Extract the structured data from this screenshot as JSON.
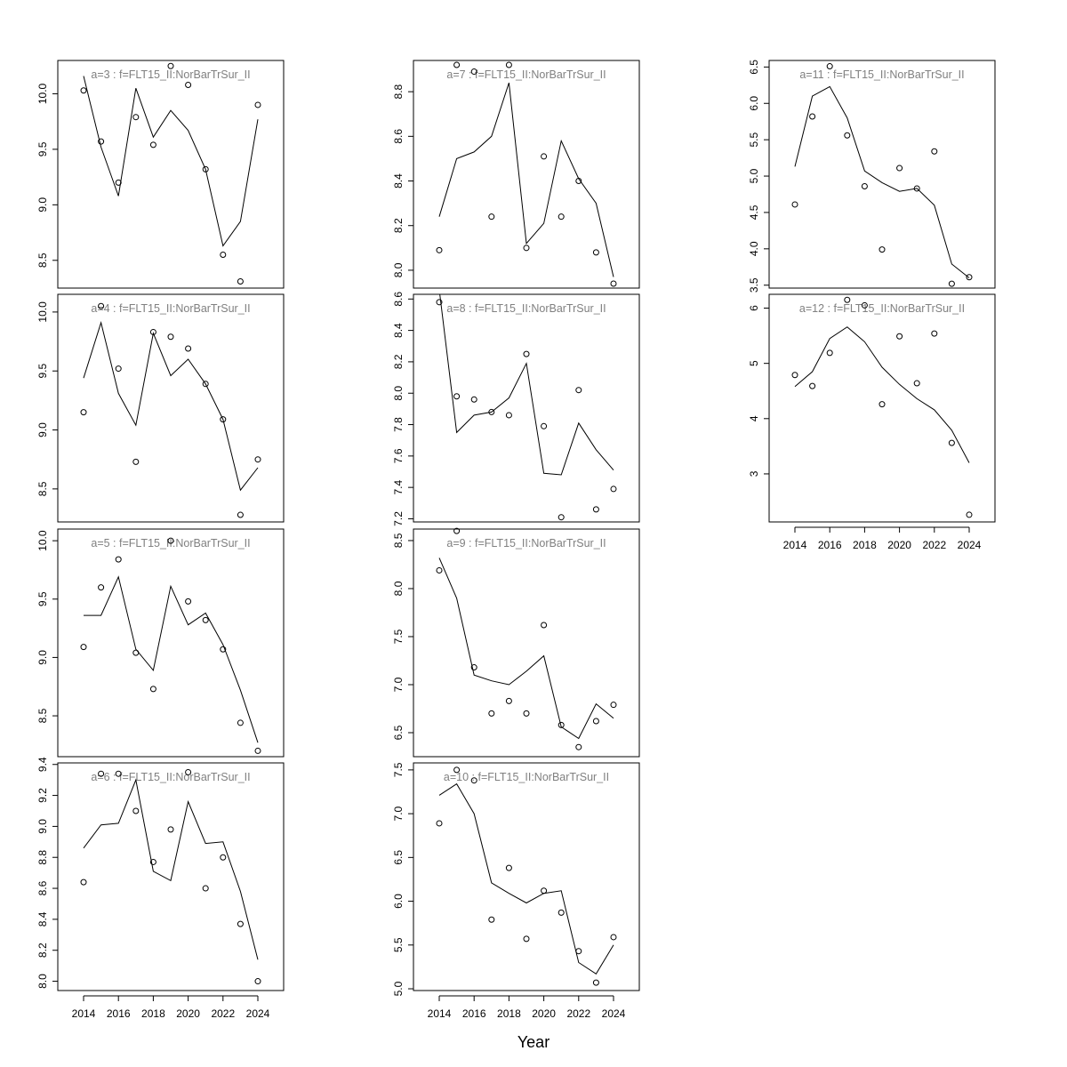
{
  "chart_data": {
    "type": "line",
    "xlabel": "Year",
    "grid": false,
    "line_color": "#000000",
    "point_color": "#000000",
    "title_color": "#808080",
    "panels": [
      {
        "title": "a=3  :  f=FLT15_II:NorBarTrSur_II",
        "x": [
          2014,
          2015,
          2016,
          2017,
          2018,
          2019,
          2020,
          2021,
          2022,
          2023,
          2024
        ],
        "fitted": [
          10.16,
          9.52,
          9.08,
          10.05,
          9.61,
          9.85,
          9.67,
          9.32,
          8.63,
          8.85,
          9.77
        ],
        "observed": [
          10.03,
          9.57,
          9.2,
          9.79,
          9.54,
          10.25,
          10.08,
          9.32,
          8.55,
          8.31,
          9.9
        ],
        "ylim": [
          8.25,
          10.3
        ],
        "yticks": [
          8.5,
          9.0,
          9.5,
          10.0
        ],
        "ytick_labels": [
          "8.5",
          "9.0",
          "9.5",
          "10.0"
        ]
      },
      {
        "title": "a=4  :  f=FLT15_II:NorBarTrSur_II",
        "x": [
          2014,
          2015,
          2016,
          2017,
          2018,
          2019,
          2020,
          2021,
          2022,
          2023,
          2024
        ],
        "fitted": [
          9.44,
          9.91,
          9.31,
          9.04,
          9.82,
          9.46,
          9.6,
          9.39,
          9.09,
          8.49,
          8.68
        ],
        "observed": [
          9.15,
          10.05,
          9.52,
          8.73,
          9.83,
          9.79,
          9.69,
          9.39,
          9.09,
          8.28,
          8.75
        ],
        "ylim": [
          8.22,
          10.15
        ],
        "yticks": [
          8.5,
          9.0,
          9.5,
          10.0
        ],
        "ytick_labels": [
          "8.5",
          "9.0",
          "9.5",
          "10.0"
        ]
      },
      {
        "title": "a=5  :  f=FLT15_II:NorBarTrSur_II",
        "x": [
          2014,
          2015,
          2016,
          2017,
          2018,
          2019,
          2020,
          2021,
          2022,
          2023,
          2024
        ],
        "fitted": [
          9.36,
          9.36,
          9.69,
          9.07,
          8.89,
          9.61,
          9.28,
          9.38,
          9.11,
          8.72,
          8.27
        ],
        "observed": [
          9.09,
          9.6,
          9.84,
          9.04,
          8.73,
          10.0,
          9.48,
          9.32,
          9.07,
          8.44,
          8.2
        ],
        "ylim": [
          8.15,
          10.1
        ],
        "yticks": [
          8.5,
          9.0,
          9.5,
          10.0
        ],
        "ytick_labels": [
          "8.5",
          "9.0",
          "9.5",
          "10.0"
        ]
      },
      {
        "title": "a=6  :  f=FLT15_II:NorBarTrSur_II",
        "x": [
          2014,
          2015,
          2016,
          2017,
          2018,
          2019,
          2020,
          2021,
          2022,
          2023,
          2024
        ],
        "fitted": [
          8.86,
          9.01,
          9.02,
          9.3,
          8.71,
          8.65,
          9.16,
          8.89,
          8.9,
          8.58,
          8.14
        ],
        "observed": [
          8.64,
          9.34,
          9.34,
          9.1,
          8.77,
          8.98,
          9.35,
          8.6,
          8.8,
          8.37,
          8.0
        ],
        "ylim": [
          7.94,
          9.41
        ],
        "yticks": [
          8.0,
          8.2,
          8.4,
          8.6,
          8.8,
          9.0,
          9.2,
          9.4
        ],
        "ytick_labels": [
          "8.0",
          "8.2",
          "8.4",
          "8.6",
          "8.8",
          "9.0",
          "9.2",
          "9.4"
        ]
      },
      {
        "title": "a=7  :  f=FLT15_II:NorBarTrSur_II",
        "x": [
          2014,
          2015,
          2016,
          2017,
          2018,
          2019,
          2020,
          2021,
          2022,
          2023,
          2024
        ],
        "fitted": [
          8.24,
          8.5,
          8.53,
          8.6,
          8.84,
          8.12,
          8.21,
          8.58,
          8.41,
          8.3,
          7.97
        ],
        "observed": [
          8.09,
          8.92,
          8.89,
          8.24,
          8.92,
          8.1,
          8.51,
          8.24,
          8.4,
          8.08,
          7.94
        ],
        "ylim": [
          7.92,
          8.94
        ],
        "yticks": [
          8.0,
          8.2,
          8.4,
          8.6,
          8.8
        ],
        "ytick_labels": [
          "8.0",
          "8.2",
          "8.4",
          "8.6",
          "8.8"
        ]
      },
      {
        "title": "a=8  :  f=FLT15_II:NorBarTrSur_II",
        "x": [
          2014,
          2015,
          2016,
          2017,
          2018,
          2019,
          2020,
          2021,
          2022,
          2023,
          2024
        ],
        "fitted": [
          8.66,
          7.75,
          7.86,
          7.88,
          7.97,
          8.19,
          7.49,
          7.48,
          7.81,
          7.64,
          7.51
        ],
        "observed": [
          8.58,
          7.98,
          7.96,
          7.88,
          7.86,
          8.25,
          7.79,
          7.21,
          8.02,
          7.26,
          7.39
        ],
        "ylim": [
          7.18,
          8.63
        ],
        "yticks": [
          7.2,
          7.4,
          7.6,
          7.8,
          8.0,
          8.2,
          8.4,
          8.6
        ],
        "ytick_labels": [
          "7.2",
          "7.4",
          "7.6",
          "7.8",
          "8.0",
          "8.2",
          "8.4",
          "8.6"
        ]
      },
      {
        "title": "a=9  :  f=FLT15_II:NorBarTrSur_II",
        "x": [
          2014,
          2015,
          2016,
          2017,
          2018,
          2019,
          2020,
          2021,
          2022,
          2023,
          2024
        ],
        "fitted": [
          8.32,
          7.9,
          7.1,
          7.04,
          7.0,
          7.14,
          7.3,
          6.56,
          6.44,
          6.8,
          6.65
        ],
        "observed": [
          8.19,
          8.6,
          7.18,
          6.7,
          6.83,
          6.7,
          7.62,
          6.58,
          6.35,
          6.62,
          6.79
        ],
        "ylim": [
          6.25,
          8.62
        ],
        "yticks": [
          6.5,
          7.0,
          7.5,
          8.0,
          8.5
        ],
        "ytick_labels": [
          "6.5",
          "7.0",
          "7.5",
          "8.0",
          "8.5"
        ]
      },
      {
        "title": "a=10  :  f=FLT15_II:NorBarTrSur_II",
        "x": [
          2014,
          2015,
          2016,
          2017,
          2018,
          2019,
          2020,
          2021,
          2022,
          2023,
          2024
        ],
        "fitted": [
          7.21,
          7.34,
          7.0,
          6.21,
          6.09,
          5.98,
          6.09,
          6.12,
          5.3,
          5.17,
          5.5
        ],
        "observed": [
          6.89,
          7.5,
          7.38,
          5.79,
          6.38,
          5.57,
          6.12,
          5.87,
          5.43,
          5.07,
          5.59
        ],
        "ylim": [
          4.98,
          7.58
        ],
        "yticks": [
          5.0,
          5.5,
          6.0,
          6.5,
          7.0,
          7.5
        ],
        "ytick_labels": [
          "5.0",
          "5.5",
          "6.0",
          "6.5",
          "7.0",
          "7.5"
        ]
      },
      {
        "title": "a=11  :  f=FLT15_II:NorBarTrSur_II",
        "x": [
          2014,
          2015,
          2016,
          2017,
          2018,
          2019,
          2020,
          2021,
          2022,
          2023,
          2024
        ],
        "fitted": [
          5.13,
          6.1,
          6.23,
          5.8,
          5.07,
          4.91,
          4.79,
          4.83,
          4.6,
          3.79,
          3.6
        ],
        "observed": [
          4.61,
          5.82,
          6.51,
          5.56,
          4.86,
          3.99,
          5.11,
          4.83,
          5.34,
          3.52,
          3.61
        ],
        "ylim": [
          3.46,
          6.59
        ],
        "yticks": [
          3.5,
          4.0,
          4.5,
          5.0,
          5.5,
          6.0,
          6.5
        ],
        "ytick_labels": [
          "3.5",
          "4.0",
          "4.5",
          "5.0",
          "5.5",
          "6.0",
          "6.5"
        ]
      },
      {
        "title": "a=12  :  f=FLT15_II:NorBarTrSur_II",
        "x": [
          2014,
          2015,
          2016,
          2017,
          2018,
          2019,
          2020,
          2021,
          2022,
          2023,
          2024
        ],
        "fitted": [
          4.58,
          4.85,
          5.45,
          5.66,
          5.39,
          4.93,
          4.62,
          4.36,
          4.16,
          3.79,
          3.2
        ],
        "observed": [
          4.79,
          4.59,
          5.19,
          6.15,
          6.05,
          4.26,
          5.49,
          4.64,
          5.54,
          3.56,
          2.26
        ],
        "ylim": [
          2.13,
          6.25
        ],
        "yticks": [
          3,
          4,
          5,
          6
        ],
        "ytick_labels": [
          "3",
          "4",
          "5",
          "6"
        ]
      }
    ],
    "xticks": [
      2014,
      2016,
      2018,
      2020,
      2022,
      2024
    ],
    "xtick_labels": [
      "2014",
      "2016",
      "2018",
      "2020",
      "2022",
      "2024"
    ]
  }
}
